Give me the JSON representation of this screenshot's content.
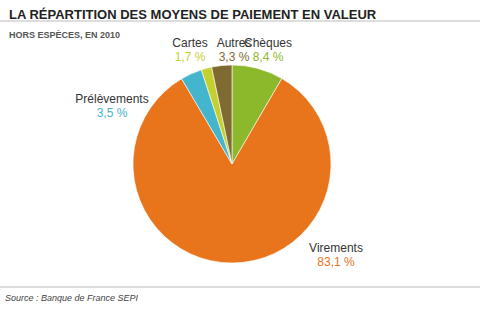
{
  "chart_data": {
    "type": "pie",
    "title": "LA RÉPARTITION DES MOYENS DE PAIEMENT EN VALEUR",
    "subtitle": "HORS ESPÈCES, EN 2010",
    "source": "Source : Banque de France SEPI",
    "categories": [
      "Chèques",
      "Virements",
      "Prélèvements",
      "Cartes",
      "Autres"
    ],
    "values": [
      8.4,
      83.1,
      3.5,
      1.7,
      3.3
    ],
    "value_labels": [
      "8,4 %",
      "83,1 %",
      "3,5 %",
      "1,7 %",
      "3,3 %"
    ],
    "colors": [
      "#8cb82b",
      "#e8741c",
      "#43b5cc",
      "#c3d02e",
      "#7f6b32"
    ],
    "data_labels": true
  }
}
